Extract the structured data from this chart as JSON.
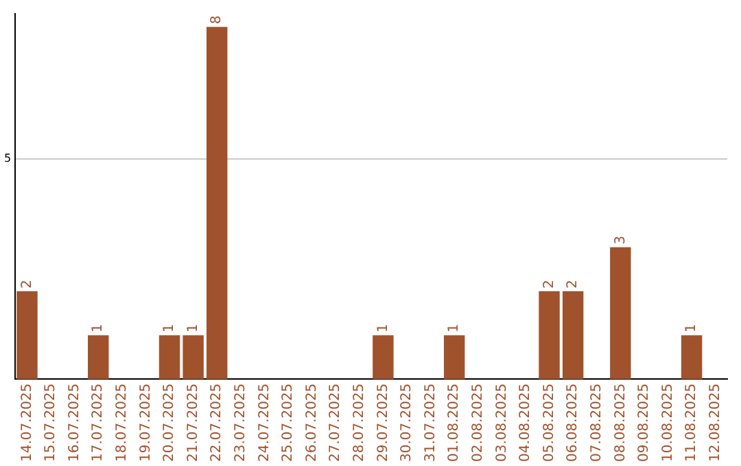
{
  "chart_data": {
    "type": "bar",
    "categories": [
      "14.07.2025",
      "15.07.2025",
      "16.07.2025",
      "17.07.2025",
      "18.07.2025",
      "19.07.2025",
      "20.07.2025",
      "21.07.2025",
      "22.07.2025",
      "23.07.2025",
      "24.07.2025",
      "25.07.2025",
      "26.07.2025",
      "27.07.2025",
      "28.07.2025",
      "29.07.2025",
      "30.07.2025",
      "31.07.2025",
      "01.08.2025",
      "02.08.2025",
      "03.08.2025",
      "04.08.2025",
      "05.08.2025",
      "06.08.2025",
      "07.08.2025",
      "08.08.2025",
      "09.08.2025",
      "10.08.2025",
      "11.08.2025",
      "12.08.2025"
    ],
    "values": [
      2,
      0,
      0,
      1,
      0,
      0,
      1,
      1,
      8,
      0,
      0,
      0,
      0,
      0,
      0,
      1,
      0,
      0,
      1,
      0,
      0,
      0,
      2,
      2,
      0,
      3,
      0,
      0,
      1,
      0
    ],
    "value_labels": [
      "2",
      null,
      null,
      "1",
      null,
      null,
      "1",
      "1",
      "8",
      null,
      null,
      null,
      null,
      null,
      null,
      "1",
      null,
      null,
      "1",
      null,
      null,
      null,
      "2",
      "2",
      null,
      "3",
      null,
      null,
      "1",
      null
    ],
    "color": "#a0522d",
    "ylim": [
      0,
      8.3
    ],
    "yticks": [
      5
    ],
    "grid": "y",
    "legend": false
  }
}
